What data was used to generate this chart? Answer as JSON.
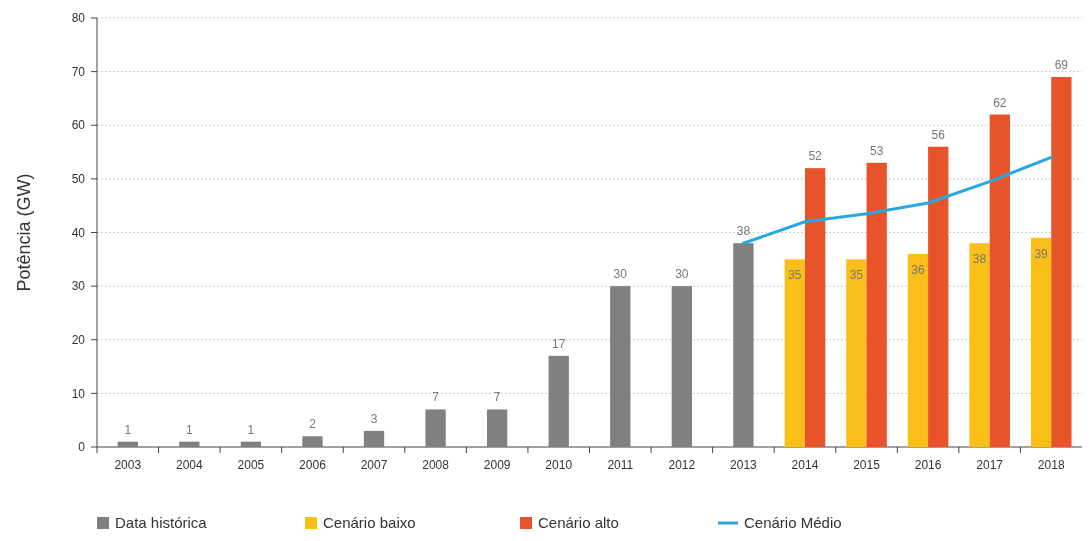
{
  "chart_data": {
    "type": "bar",
    "ylabel": "Potência (GW)",
    "categories": [
      "2003",
      "2004",
      "2005",
      "2006",
      "2007",
      "2008",
      "2009",
      "2010",
      "2011",
      "2012",
      "2013",
      "2014",
      "2015",
      "2016",
      "2017",
      "2018"
    ],
    "series": [
      {
        "name": "Data histórica",
        "color": "#808080",
        "values": [
          1,
          1,
          1,
          2,
          3,
          7,
          7,
          17,
          30,
          30,
          38,
          null,
          null,
          null,
          null,
          null
        ],
        "value_labels": [
          "1",
          "1",
          "1",
          "2",
          "3",
          "7",
          "7",
          "17",
          "30",
          "30",
          "38",
          null,
          null,
          null,
          null,
          null
        ]
      },
      {
        "name": "Cenário baixo",
        "color": "#fbbf1a",
        "values": [
          null,
          null,
          null,
          null,
          null,
          null,
          null,
          null,
          null,
          null,
          null,
          35,
          35,
          36,
          38,
          39
        ],
        "value_labels": [
          null,
          null,
          null,
          null,
          null,
          null,
          null,
          null,
          null,
          null,
          null,
          "35",
          "35",
          "36",
          "38",
          "39"
        ]
      },
      {
        "name": "Cenário alto",
        "color": "#e8542a",
        "values": [
          null,
          null,
          null,
          null,
          null,
          null,
          null,
          null,
          null,
          null,
          null,
          52,
          53,
          56,
          62,
          69
        ],
        "value_labels": [
          null,
          null,
          null,
          null,
          null,
          null,
          null,
          null,
          null,
          null,
          null,
          "52",
          "53",
          "56",
          "62",
          "69"
        ]
      },
      {
        "name": "Cenário Médio",
        "type": "line",
        "color": "#29a8e0",
        "values": [
          null,
          null,
          null,
          null,
          null,
          null,
          null,
          null,
          null,
          null,
          38,
          42,
          43.5,
          45.5,
          49.5,
          54
        ]
      }
    ],
    "ylim": [
      0,
      80
    ],
    "yticks": [
      0,
      10,
      20,
      30,
      40,
      50,
      60,
      70,
      80
    ],
    "grid": "y",
    "legend": "bottom"
  }
}
